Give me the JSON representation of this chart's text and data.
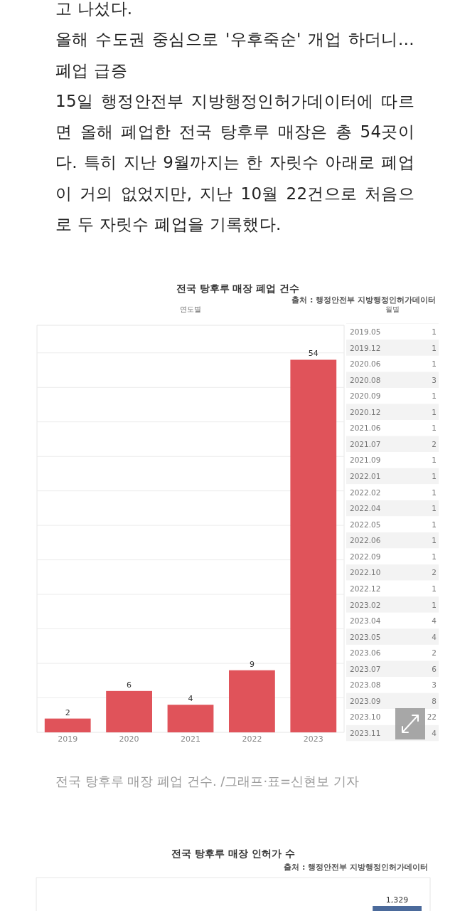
{
  "chart_data": [
    {
      "type": "bar",
      "title": "전국 탕후루 매장 폐업 건수",
      "subtitle": "연도별",
      "categories": [
        "2019",
        "2020",
        "2021",
        "2022",
        "2023"
      ],
      "values": [
        2,
        6,
        4,
        9,
        54
      ],
      "color": "#e0535a",
      "data_labels": true,
      "ylim": [
        0,
        59
      ],
      "yticks": [
        {
          "value": 5,
          "label": null
        },
        {
          "value": 10,
          "label": null
        },
        {
          "value": 15,
          "label": null
        },
        {
          "value": 20,
          "label": null
        },
        {
          "value": 25,
          "label": null
        },
        {
          "value": 30,
          "label": null
        },
        {
          "value": 35,
          "label": null
        },
        {
          "value": 40,
          "label": null
        },
        {
          "value": 45,
          "label": null
        },
        {
          "value": 50,
          "label": null
        },
        {
          "value": 55,
          "label": null
        }
      ],
      "grid": "y",
      "tick_labels": "x",
      "annotations": [
        "고 나섰다.",
        "올해 수도권 중심으로 '우후죽순' 개업 하더니… 폐업 급증",
        "15일 행정안전부 지방행정인허가데이터에 따르면 올해 폐업한 전국 탕후루 매장은 총 54곳이다. 특히 지난 9월까지는 한 자릿수 아래로 폐업이 거의 없었지만, 지난 10월 22건으로 처음으로 두 자릿수 폐업을 기록했다.",
        "출처 : 행정안전부 지방행정인허가데이터",
        "전국 탕후루 매장 폐업 건수. /그래프·표=신현보 기자"
      ]
    },
    {
      "type": "heatmap",
      "title": "월별",
      "categories": [
        null
      ],
      "y_categories": [
        "2019.05",
        "2019.12",
        "2020.06",
        "2020.08",
        "2020.09",
        "2020.12",
        "2021.06",
        "2021.07",
        "2021.09",
        "2022.01",
        "2022.02",
        "2022.04",
        "2022.05",
        "2022.06",
        "2022.09",
        "2022.10",
        "2022.12",
        "2023.02",
        "2023.04",
        "2023.05",
        "2023.06",
        "2023.07",
        "2023.08",
        "2023.09",
        "2023.10",
        "2023.11"
      ],
      "cells": [
        [
          1
        ],
        [
          1
        ],
        [
          1
        ],
        [
          3
        ],
        [
          1
        ],
        [
          1
        ],
        [
          1
        ],
        [
          2
        ],
        [
          1
        ],
        [
          1
        ],
        [
          1
        ],
        [
          1
        ],
        [
          1
        ],
        [
          1
        ],
        [
          1
        ],
        [
          2
        ],
        [
          1
        ],
        [
          1
        ],
        [
          4
        ],
        [
          4
        ],
        [
          2
        ],
        [
          6
        ],
        [
          3
        ],
        [
          8
        ],
        [
          22
        ],
        [
          4
        ]
      ],
      "data_labels": true
    },
    {
      "type": "other",
      "title": "전국 탕후루 매장 인허가 수",
      "categories": [
        null,
        null,
        null,
        null,
        null
      ],
      "values": [
        null,
        null,
        null,
        null,
        1329
      ],
      "value_labels": [
        null,
        null,
        null,
        null,
        "1,329"
      ],
      "color": "#4b6a9b",
      "annotations": [
        "출처 : 행정안전부 지방행정인허가데이터"
      ]
    }
  ]
}
